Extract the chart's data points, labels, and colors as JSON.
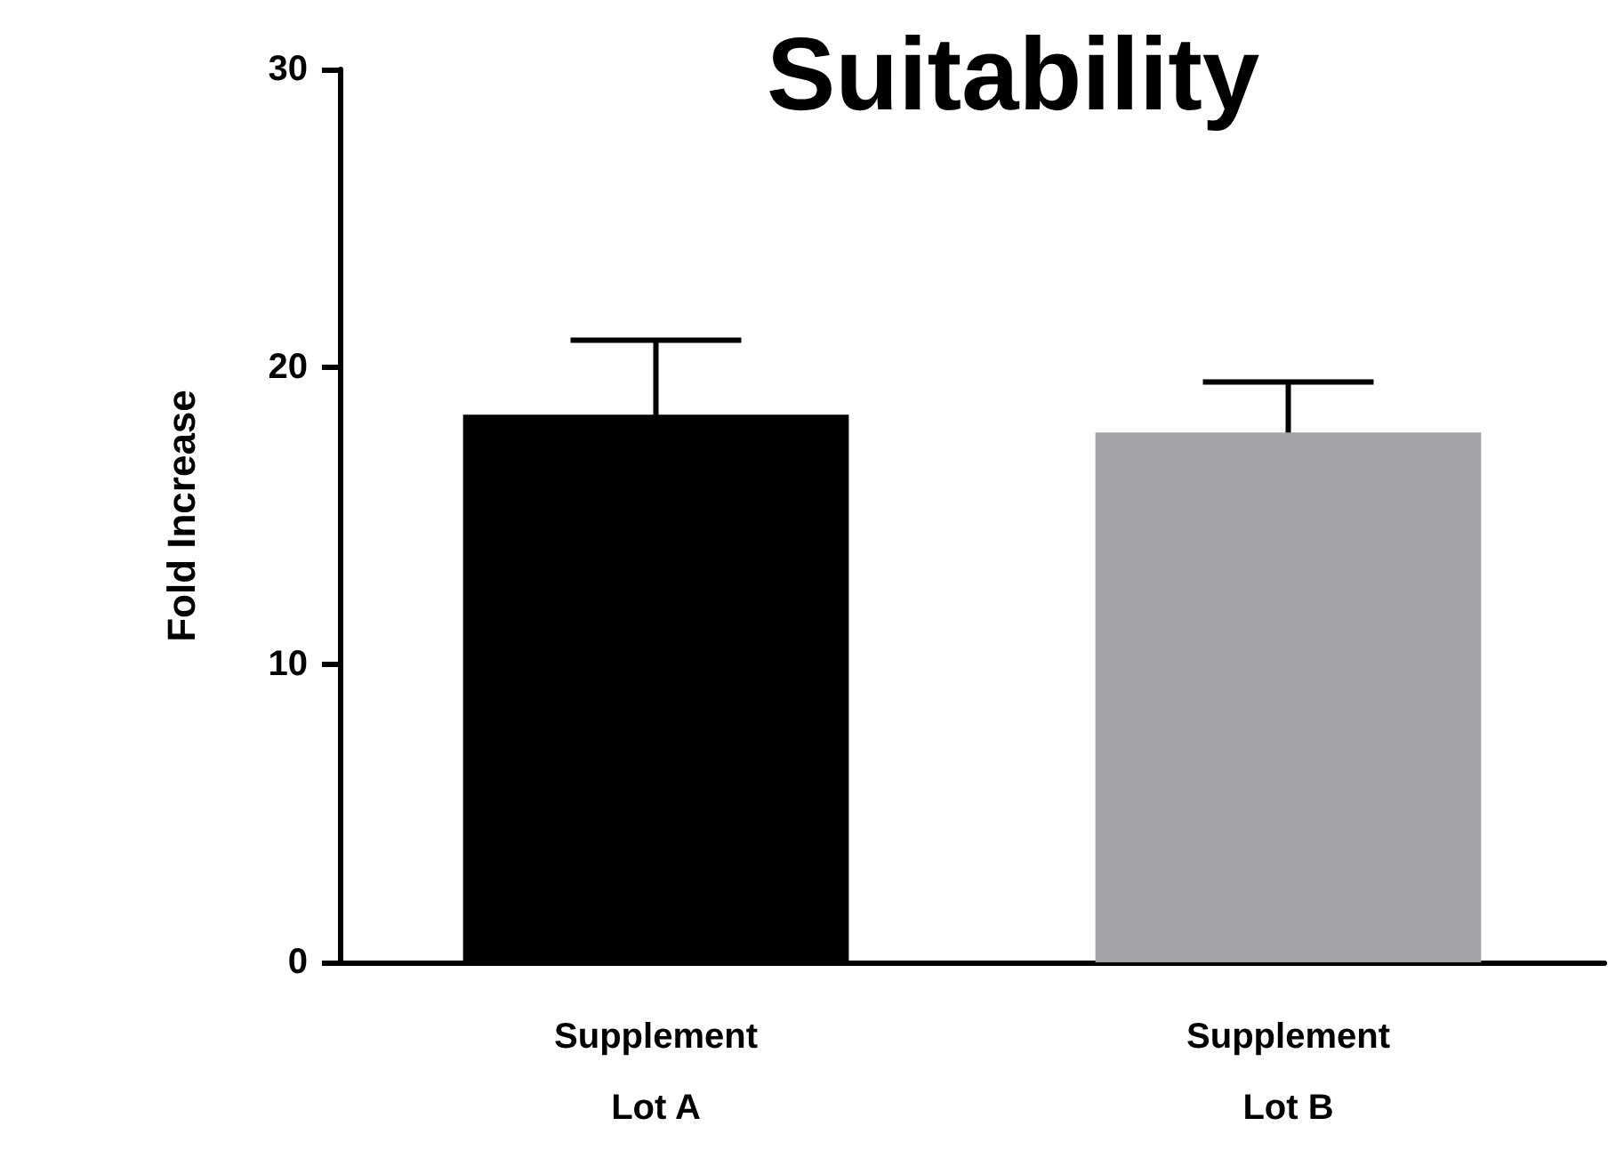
{
  "chart_data": {
    "type": "bar",
    "title": "Suitability",
    "ylabel": "Fold Increase",
    "categories": [
      "Supplement\nLot A",
      "Supplement\nLot B"
    ],
    "values": [
      18.4,
      17.8
    ],
    "colors": [
      "#000000",
      "#a3a2a7"
    ],
    "errors": [
      2.5,
      1.7
    ],
    "ylim": [
      0,
      30
    ],
    "yticks": [
      0,
      10,
      20,
      30
    ]
  }
}
